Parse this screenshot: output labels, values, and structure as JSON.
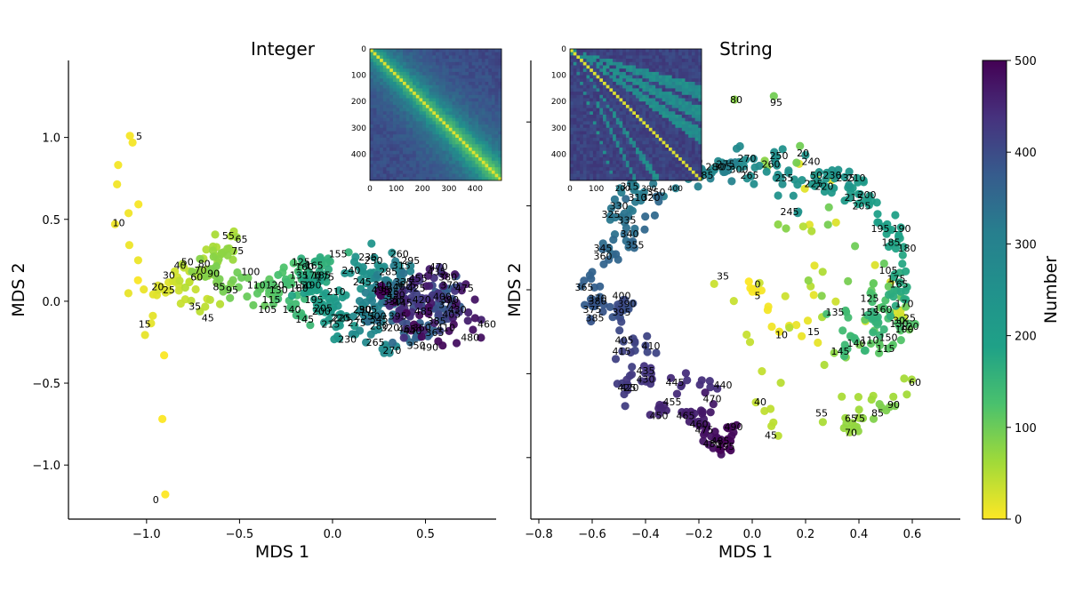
{
  "figure": {
    "colorbar_label": "Number"
  },
  "chart_data": [
    {
      "type": "scatter",
      "title": "Integer",
      "xlabel": "MDS 1",
      "ylabel": "MDS 2",
      "xlim": [
        -1.42,
        0.88
      ],
      "ylim": [
        -1.33,
        1.47
      ],
      "xticks": [
        -1.0,
        -0.5,
        0.0,
        0.5
      ],
      "xtick_labels": [
        "−1.0",
        "−0.5",
        "0.0",
        "0.5"
      ],
      "yticks": [
        -1.0,
        -0.5,
        0.0,
        0.5,
        1.0
      ],
      "ytick_labels": [
        "−1.0",
        "−0.5",
        "0.0",
        "0.5",
        "1.0"
      ],
      "labeled_points": [
        {
          "label": "0",
          "x": -0.95,
          "y": -1.21
        },
        {
          "label": "5",
          "x": -1.04,
          "y": 1.01
        },
        {
          "label": "10",
          "x": -1.15,
          "y": 0.48
        },
        {
          "label": "15",
          "x": -1.01,
          "y": -0.14
        },
        {
          "label": "20",
          "x": -0.94,
          "y": 0.09
        },
        {
          "label": "25",
          "x": -0.88,
          "y": 0.07
        },
        {
          "label": "30",
          "x": -0.88,
          "y": 0.16
        },
        {
          "label": "35",
          "x": -0.74,
          "y": -0.03
        },
        {
          "label": "40",
          "x": -0.82,
          "y": 0.22
        },
        {
          "label": "45",
          "x": -0.67,
          "y": -0.1
        },
        {
          "label": "50",
          "x": -0.78,
          "y": 0.24
        },
        {
          "label": "55",
          "x": -0.56,
          "y": 0.4
        },
        {
          "label": "60",
          "x": -0.73,
          "y": 0.15
        },
        {
          "label": "65",
          "x": -0.49,
          "y": 0.38
        },
        {
          "label": "70",
          "x": -0.71,
          "y": 0.19
        },
        {
          "label": "75",
          "x": -0.51,
          "y": 0.31
        },
        {
          "label": "80",
          "x": -0.69,
          "y": 0.23
        },
        {
          "label": "85",
          "x": -0.61,
          "y": 0.09
        },
        {
          "label": "90",
          "x": -0.64,
          "y": 0.17
        },
        {
          "label": "95",
          "x": -0.54,
          "y": 0.07
        },
        {
          "label": "100",
          "x": -0.44,
          "y": 0.18
        },
        {
          "label": "105",
          "x": -0.35,
          "y": -0.05
        },
        {
          "label": "110",
          "x": -0.41,
          "y": 0.1
        },
        {
          "label": "115",
          "x": -0.33,
          "y": 0.01
        },
        {
          "label": "120",
          "x": -0.31,
          "y": 0.1
        },
        {
          "label": "125",
          "x": -0.17,
          "y": 0.24
        },
        {
          "label": "130",
          "x": -0.29,
          "y": 0.07
        },
        {
          "label": "135",
          "x": -0.18,
          "y": 0.16
        },
        {
          "label": "140",
          "x": -0.22,
          "y": -0.05
        },
        {
          "label": "145",
          "x": -0.15,
          "y": -0.11
        },
        {
          "label": "150",
          "x": -0.16,
          "y": 0.1
        },
        {
          "label": "155",
          "x": 0.03,
          "y": 0.29
        },
        {
          "label": "160",
          "x": -0.15,
          "y": 0.21
        },
        {
          "label": "165",
          "x": -0.1,
          "y": 0.22
        },
        {
          "label": "170",
          "x": -0.11,
          "y": 0.16
        },
        {
          "label": "175",
          "x": -0.04,
          "y": 0.15
        },
        {
          "label": "180",
          "x": -0.18,
          "y": 0.08
        },
        {
          "label": "185",
          "x": -0.06,
          "y": 0.16
        },
        {
          "label": "190",
          "x": -0.11,
          "y": 0.1
        },
        {
          "label": "195",
          "x": -0.1,
          "y": 0.01
        },
        {
          "label": "200",
          "x": -0.06,
          "y": -0.06
        },
        {
          "label": "205",
          "x": -0.05,
          "y": -0.04
        },
        {
          "label": "210",
          "x": 0.02,
          "y": 0.06
        },
        {
          "label": "215",
          "x": -0.01,
          "y": -0.14
        },
        {
          "label": "220",
          "x": 0.04,
          "y": -0.1
        },
        {
          "label": "225",
          "x": 0.05,
          "y": -0.1
        },
        {
          "label": "230",
          "x": 0.08,
          "y": -0.23
        },
        {
          "label": "235",
          "x": 0.19,
          "y": 0.27
        },
        {
          "label": "240",
          "x": 0.1,
          "y": 0.19
        },
        {
          "label": "245",
          "x": 0.16,
          "y": 0.12
        },
        {
          "label": "250",
          "x": 0.22,
          "y": 0.25
        },
        {
          "label": "255",
          "x": 0.17,
          "y": -0.09
        },
        {
          "label": "260",
          "x": 0.36,
          "y": 0.29
        },
        {
          "label": "265",
          "x": 0.23,
          "y": -0.25
        },
        {
          "label": "270",
          "x": 0.32,
          "y": -0.3
        },
        {
          "label": "275",
          "x": 0.13,
          "y": -0.13
        },
        {
          "label": "280",
          "x": 0.25,
          "y": -0.15
        },
        {
          "label": "285",
          "x": 0.3,
          "y": 0.18
        },
        {
          "label": "290",
          "x": 0.16,
          "y": -0.05
        },
        {
          "label": "295",
          "x": 0.42,
          "y": 0.25
        },
        {
          "label": "300",
          "x": 0.24,
          "y": -0.09
        },
        {
          "label": "305",
          "x": 0.19,
          "y": -0.05
        },
        {
          "label": "310",
          "x": 0.27,
          "y": 0.1
        },
        {
          "label": "315",
          "x": 0.37,
          "y": 0.22
        },
        {
          "label": "320",
          "x": 0.31,
          "y": -0.16
        },
        {
          "label": "325",
          "x": 0.31,
          "y": 0.06
        },
        {
          "label": "330",
          "x": 0.32,
          "y": 0.0
        },
        {
          "label": "335",
          "x": 0.38,
          "y": 0.12
        },
        {
          "label": "340",
          "x": 0.34,
          "y": 0.09
        },
        {
          "label": "345",
          "x": 0.25,
          "y": -0.11
        },
        {
          "label": "350",
          "x": 0.45,
          "y": -0.27
        },
        {
          "label": "355",
          "x": 0.34,
          "y": 0.01
        },
        {
          "label": "360",
          "x": 0.48,
          "y": -0.16
        },
        {
          "label": "365",
          "x": 0.55,
          "y": -0.19
        },
        {
          "label": "370",
          "x": 0.63,
          "y": 0.1
        },
        {
          "label": "375",
          "x": 0.62,
          "y": -0.02
        },
        {
          "label": "380",
          "x": 0.62,
          "y": 0.15
        },
        {
          "label": "385",
          "x": 0.56,
          "y": -0.12
        },
        {
          "label": "390",
          "x": 0.63,
          "y": 0.01
        },
        {
          "label": "395",
          "x": 0.35,
          "y": -0.09
        },
        {
          "label": "400",
          "x": 0.59,
          "y": 0.03
        },
        {
          "label": "405",
          "x": 0.64,
          "y": -0.08
        },
        {
          "label": "410",
          "x": 0.61,
          "y": -0.16
        },
        {
          "label": "415",
          "x": 0.4,
          "y": 0.1
        },
        {
          "label": "420",
          "x": 0.48,
          "y": 0.01
        },
        {
          "label": "425",
          "x": 0.45,
          "y": 0.08
        },
        {
          "label": "430",
          "x": 0.67,
          "y": -0.05
        },
        {
          "label": "435",
          "x": 0.56,
          "y": 0.18
        },
        {
          "label": "440",
          "x": 0.43,
          "y": -0.18
        },
        {
          "label": "445",
          "x": 0.38,
          "y": -0.01
        },
        {
          "label": "450",
          "x": 0.34,
          "y": 0.04
        },
        {
          "label": "455",
          "x": 0.46,
          "y": 0.14
        },
        {
          "label": "460",
          "x": 0.83,
          "y": -0.14
        },
        {
          "label": "465",
          "x": 0.4,
          "y": -0.17
        },
        {
          "label": "470",
          "x": 0.57,
          "y": 0.21
        },
        {
          "label": "475",
          "x": 0.71,
          "y": 0.08
        },
        {
          "label": "480",
          "x": 0.74,
          "y": -0.22
        },
        {
          "label": "485",
          "x": 0.49,
          "y": -0.06
        },
        {
          "label": "490",
          "x": 0.52,
          "y": -0.28
        },
        {
          "label": "495",
          "x": 0.26,
          "y": 0.07
        }
      ],
      "inset_heatmap": {
        "ticks": [
          "0",
          "100",
          "200",
          "300",
          "400"
        ],
        "size": 500,
        "style": "diagonal band, smooth"
      }
    },
    {
      "type": "scatter",
      "title": "String",
      "xlabel": "MDS 1",
      "ylabel": "MDS 2",
      "xlim": [
        -0.83,
        0.78
      ],
      "ylim": [
        -0.82,
        0.82
      ],
      "xticks": [
        -0.8,
        -0.6,
        -0.4,
        -0.2,
        0.0,
        0.2,
        0.4,
        0.6
      ],
      "xtick_labels": [
        "−0.8",
        "−0.6",
        "−0.4",
        "−0.2",
        "0.0",
        "0.2",
        "0.4",
        "0.6"
      ],
      "yticks": [
        -0.6,
        -0.3,
        0.0,
        0.3,
        0.6
      ],
      "labeled_points": [
        {
          "label": "0",
          "x": 0.02,
          "y": 0.02
        },
        {
          "label": "5",
          "x": 0.02,
          "y": -0.02
        },
        {
          "label": "10",
          "x": 0.11,
          "y": -0.16
        },
        {
          "label": "15",
          "x": 0.23,
          "y": -0.15
        },
        {
          "label": "20",
          "x": 0.19,
          "y": 0.49
        },
        {
          "label": "25",
          "x": 0.59,
          "y": -0.1
        },
        {
          "label": "30",
          "x": 0.55,
          "y": -0.11
        },
        {
          "label": "35",
          "x": -0.11,
          "y": 0.05
        },
        {
          "label": "40",
          "x": 0.03,
          "y": -0.4
        },
        {
          "label": "45",
          "x": 0.07,
          "y": -0.52
        },
        {
          "label": "50",
          "x": 0.24,
          "y": 0.41
        },
        {
          "label": "55",
          "x": 0.26,
          "y": -0.44
        },
        {
          "label": "60",
          "x": 0.61,
          "y": -0.33
        },
        {
          "label": "65",
          "x": 0.37,
          "y": -0.46
        },
        {
          "label": "70",
          "x": 0.37,
          "y": -0.51
        },
        {
          "label": "75",
          "x": 0.4,
          "y": -0.46
        },
        {
          "label": "80",
          "x": -0.06,
          "y": 0.68
        },
        {
          "label": "85",
          "x": 0.47,
          "y": -0.44
        },
        {
          "label": "90",
          "x": 0.53,
          "y": -0.41
        },
        {
          "label": "95",
          "x": 0.09,
          "y": 0.67
        },
        {
          "label": "100",
          "x": 0.57,
          "y": -0.14
        },
        {
          "label": "105",
          "x": 0.51,
          "y": 0.07
        },
        {
          "label": "110",
          "x": 0.44,
          "y": -0.18
        },
        {
          "label": "115",
          "x": 0.5,
          "y": -0.21
        },
        {
          "label": "120",
          "x": 0.59,
          "y": -0.13
        },
        {
          "label": "125",
          "x": 0.44,
          "y": -0.03
        },
        {
          "label": "130",
          "x": 0.55,
          "y": -0.12
        },
        {
          "label": "135",
          "x": 0.31,
          "y": -0.08
        },
        {
          "label": "140",
          "x": 0.39,
          "y": -0.19
        },
        {
          "label": "145",
          "x": 0.33,
          "y": -0.22
        },
        {
          "label": "150",
          "x": 0.51,
          "y": -0.17
        },
        {
          "label": "155",
          "x": 0.44,
          "y": -0.08
        },
        {
          "label": "160",
          "x": 0.49,
          "y": -0.07
        },
        {
          "label": "165",
          "x": 0.55,
          "y": 0.02
        },
        {
          "label": "170",
          "x": 0.57,
          "y": -0.05
        },
        {
          "label": "175",
          "x": 0.54,
          "y": 0.04
        },
        {
          "label": "180",
          "x": 0.58,
          "y": 0.15
        },
        {
          "label": "185",
          "x": 0.52,
          "y": 0.17
        },
        {
          "label": "190",
          "x": 0.56,
          "y": 0.22
        },
        {
          "label": "195",
          "x": 0.48,
          "y": 0.22
        },
        {
          "label": "200",
          "x": 0.43,
          "y": 0.34
        },
        {
          "label": "205",
          "x": 0.41,
          "y": 0.3
        },
        {
          "label": "210",
          "x": 0.39,
          "y": 0.4
        },
        {
          "label": "215",
          "x": 0.38,
          "y": 0.33
        },
        {
          "label": "220",
          "x": 0.27,
          "y": 0.37
        },
        {
          "label": "225",
          "x": 0.23,
          "y": 0.38
        },
        {
          "label": "230",
          "x": 0.3,
          "y": 0.41
        },
        {
          "label": "235",
          "x": 0.35,
          "y": 0.4
        },
        {
          "label": "240",
          "x": 0.22,
          "y": 0.46
        },
        {
          "label": "245",
          "x": 0.14,
          "y": 0.28
        },
        {
          "label": "250",
          "x": 0.1,
          "y": 0.48
        },
        {
          "label": "255",
          "x": 0.12,
          "y": 0.4
        },
        {
          "label": "260",
          "x": 0.07,
          "y": 0.45
        },
        {
          "label": "265",
          "x": -0.01,
          "y": 0.41
        },
        {
          "label": "270",
          "x": -0.02,
          "y": 0.47
        },
        {
          "label": "275",
          "x": -0.1,
          "y": 0.45
        },
        {
          "label": "280",
          "x": -0.14,
          "y": 0.44
        },
        {
          "label": "285",
          "x": -0.18,
          "y": 0.41
        },
        {
          "label": "290",
          "x": -0.22,
          "y": 0.46
        },
        {
          "label": "295",
          "x": -0.27,
          "y": 0.42
        },
        {
          "label": "300",
          "x": -0.05,
          "y": 0.43
        },
        {
          "label": "305",
          "x": -0.11,
          "y": 0.44
        },
        {
          "label": "310",
          "x": -0.43,
          "y": 0.33
        },
        {
          "label": "315",
          "x": -0.46,
          "y": 0.37
        },
        {
          "label": "320",
          "x": -0.38,
          "y": 0.33
        },
        {
          "label": "325",
          "x": -0.53,
          "y": 0.27
        },
        {
          "label": "330",
          "x": -0.5,
          "y": 0.3
        },
        {
          "label": "335",
          "x": -0.47,
          "y": 0.25
        },
        {
          "label": "340",
          "x": -0.46,
          "y": 0.2
        },
        {
          "label": "345",
          "x": -0.56,
          "y": 0.15
        },
        {
          "label": "350",
          "x": -0.36,
          "y": 0.35
        },
        {
          "label": "355",
          "x": -0.44,
          "y": 0.16
        },
        {
          "label": "360",
          "x": -0.56,
          "y": 0.12
        },
        {
          "label": "365",
          "x": -0.63,
          "y": 0.01
        },
        {
          "label": "370",
          "x": -0.58,
          "y": -0.03
        },
        {
          "label": "375",
          "x": -0.6,
          "y": -0.07
        },
        {
          "label": "380",
          "x": -0.58,
          "y": -0.04
        },
        {
          "label": "385",
          "x": -0.59,
          "y": -0.1
        },
        {
          "label": "390",
          "x": -0.47,
          "y": -0.05
        },
        {
          "label": "395",
          "x": -0.49,
          "y": -0.08
        },
        {
          "label": "400",
          "x": -0.49,
          "y": -0.02
        },
        {
          "label": "405",
          "x": -0.48,
          "y": -0.18
        },
        {
          "label": "410",
          "x": -0.38,
          "y": -0.2
        },
        {
          "label": "415",
          "x": -0.49,
          "y": -0.22
        },
        {
          "label": "420",
          "x": -0.46,
          "y": -0.35
        },
        {
          "label": "425",
          "x": -0.47,
          "y": -0.35
        },
        {
          "label": "430",
          "x": -0.4,
          "y": -0.32
        },
        {
          "label": "435",
          "x": -0.4,
          "y": -0.29
        },
        {
          "label": "440",
          "x": -0.11,
          "y": -0.34
        },
        {
          "label": "445",
          "x": -0.29,
          "y": -0.33
        },
        {
          "label": "450",
          "x": -0.35,
          "y": -0.45
        },
        {
          "label": "455",
          "x": -0.3,
          "y": -0.4
        },
        {
          "label": "460",
          "x": -0.2,
          "y": -0.48
        },
        {
          "label": "465",
          "x": -0.25,
          "y": -0.45
        },
        {
          "label": "470",
          "x": -0.15,
          "y": -0.39
        },
        {
          "label": "475",
          "x": -0.18,
          "y": -0.5
        },
        {
          "label": "480",
          "x": -0.15,
          "y": -0.55
        },
        {
          "label": "485",
          "x": -0.12,
          "y": -0.54
        },
        {
          "label": "490",
          "x": -0.07,
          "y": -0.49
        },
        {
          "label": "495",
          "x": -0.1,
          "y": -0.56
        }
      ],
      "inset_heatmap": {
        "ticks": [
          "0",
          "100",
          "200",
          "300",
          "400"
        ],
        "size": 500,
        "style": "sharp diagonal with parallel off-diagonal bands"
      }
    }
  ],
  "colorbar": {
    "label": "Number",
    "min": 0,
    "max": 500,
    "ticks": [
      "0",
      "100",
      "200",
      "300",
      "400",
      "500"
    ],
    "colormap": "viridis_r"
  }
}
